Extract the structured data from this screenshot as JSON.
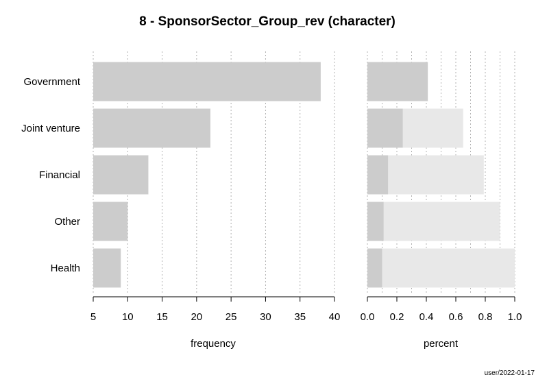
{
  "chart_data": {
    "title": "8 - SponsorSector_Group_rev (character)",
    "footer": "user/2022-01-17",
    "categories": [
      "Government",
      "Joint venture",
      "Financial",
      "Other",
      "Health"
    ],
    "frequency_panel": {
      "type": "bar",
      "orientation": "horizontal",
      "xlabel": "frequency",
      "xlim": [
        5,
        40
      ],
      "ticks": [
        5,
        10,
        15,
        20,
        25,
        30,
        35,
        40
      ],
      "tick_labels": [
        "5",
        "10",
        "15",
        "20",
        "25",
        "30",
        "35",
        "40"
      ],
      "values": [
        38,
        22,
        13,
        10,
        9
      ],
      "bar_color": "#cccccc",
      "grid": true
    },
    "percent_panel": {
      "type": "bar",
      "orientation": "horizontal",
      "xlabel": "percent",
      "xlim": [
        0,
        1
      ],
      "ticks": [
        0.0,
        0.2,
        0.4,
        0.6,
        0.8,
        1.0
      ],
      "tick_labels": [
        "0.0",
        "0.2",
        "0.4",
        "0.6",
        "0.8",
        "1.0"
      ],
      "values": [
        0.41,
        0.24,
        0.14,
        0.11,
        0.1
      ],
      "cumulative": [
        0.41,
        0.65,
        0.79,
        0.9,
        1.0
      ],
      "bar_color": "#cccccc",
      "cumulative_color": "#e8e8e8",
      "grid": true
    }
  }
}
